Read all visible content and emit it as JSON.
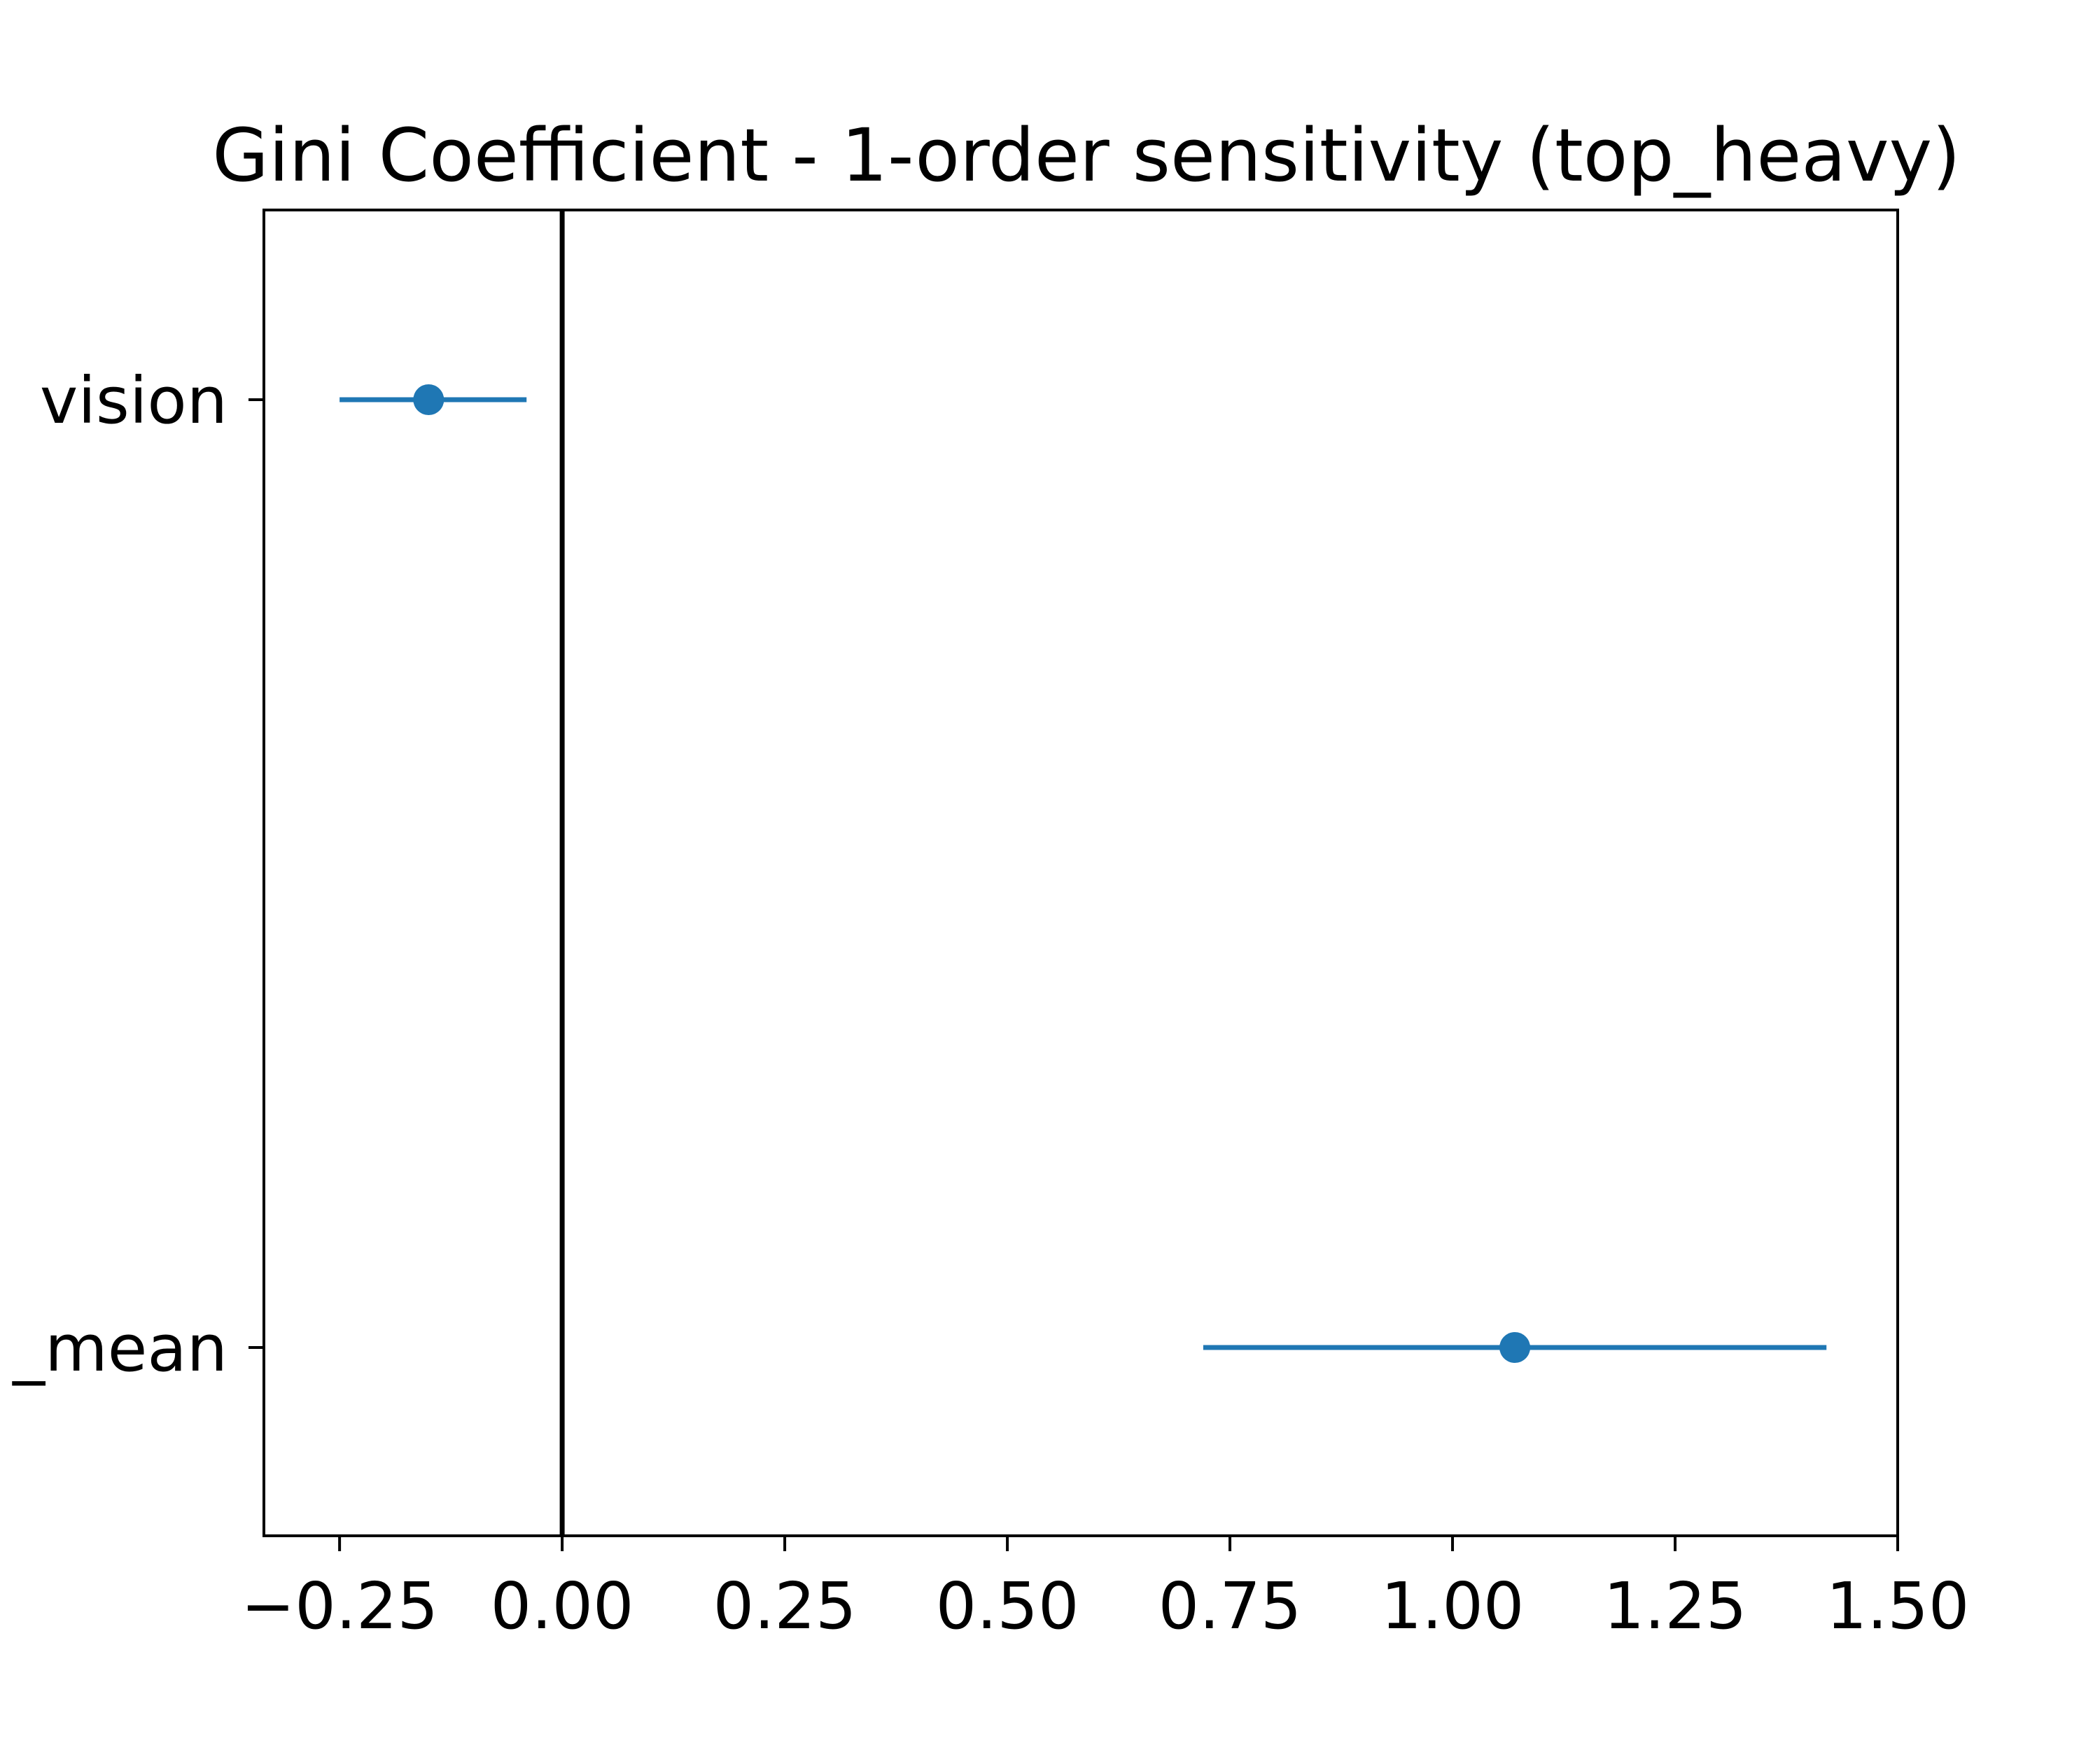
{
  "chart_data": {
    "type": "errorbar",
    "orientation": "horizontal",
    "title": "Gini Coefficient - 1-order sensitivity (top_heavy)",
    "xlabel": "",
    "ylabel": "",
    "xlim": [
      -0.335,
      1.5
    ],
    "xticks": [
      -0.25,
      0.0,
      0.25,
      0.5,
      0.75,
      1.0,
      1.25,
      1.5
    ],
    "xtick_labels": [
      "−0.25",
      "0.00",
      "0.25",
      "0.50",
      "0.75",
      "1.00",
      "1.25",
      "1.50"
    ],
    "reference_line_x": 0.0,
    "points": [
      {
        "label": "vision",
        "value": -0.15,
        "low": -0.25,
        "high": -0.04
      },
      {
        "label": "_mean",
        "value": 1.07,
        "low": 0.72,
        "high": 1.42
      }
    ],
    "grid": false,
    "colors": {
      "series": "#1f77b4",
      "reference_line": "#000000",
      "axes": "#000000"
    }
  }
}
